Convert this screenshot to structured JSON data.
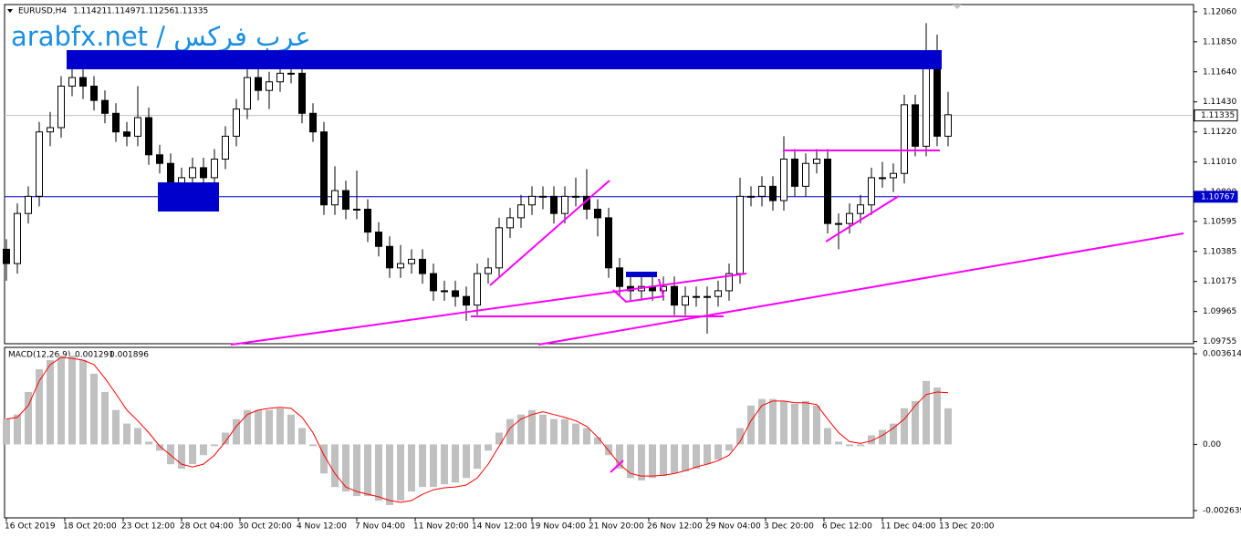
{
  "chart_data": [
    {
      "type": "candlestick",
      "title": "EURUSD,H4",
      "readouts": [
        1.11421,
        1.11497,
        1.11256,
        1.11335
      ],
      "watermark": "arabfx.net / عرب فركس",
      "x": [
        0,
        3,
        6,
        9,
        12,
        15,
        18,
        21,
        24,
        27,
        30,
        33,
        36,
        39,
        42,
        45,
        48,
        51,
        54,
        57,
        60,
        63,
        66,
        69,
        72,
        75,
        78,
        81,
        84,
        87,
        90,
        93,
        96,
        99,
        102,
        105,
        108,
        111,
        114,
        117,
        120,
        123,
        126,
        129,
        132,
        135,
        138,
        141,
        144,
        147,
        150,
        153,
        156,
        159,
        162,
        165,
        168,
        171,
        174,
        177,
        180,
        183,
        186,
        189,
        192,
        195,
        198,
        201,
        204,
        207,
        210,
        213,
        216,
        219,
        222,
        225,
        228,
        231,
        234,
        237,
        240,
        243,
        246,
        249,
        252,
        255,
        258
      ],
      "open": [
        1.104,
        1.103,
        1.1065,
        1.1077,
        1.1122,
        1.1125,
        1.1154,
        1.116,
        1.1154,
        1.1144,
        1.1135,
        1.1122,
        1.1119,
        1.1132,
        1.1106,
        1.11,
        1.1084,
        1.109,
        1.1097,
        1.109,
        1.1103,
        1.1119,
        1.1138,
        1.116,
        1.1151,
        1.1157,
        1.1163,
        1.1163,
        1.1135,
        1.1122,
        1.1071,
        1.1081,
        1.1068,
        1.1068,
        1.1052,
        1.1042,
        1.1027,
        1.103,
        1.1033,
        1.1023,
        1.1011,
        1.1011,
        1.1007,
        1.1001,
        1.1023,
        1.1027,
        1.1055,
        1.1062,
        1.1071,
        1.1077,
        1.1077,
        1.1065,
        1.1077,
        1.1077,
        1.1068,
        1.1062,
        1.1027,
        1.1014,
        1.1011,
        1.1014,
        1.1011,
        1.1014,
        1.1001,
        1.1007,
        1.1007,
        1.1007,
        1.1011,
        1.1023,
        1.1077,
        1.1077,
        1.1084,
        1.1074,
        1.1103,
        1.1084,
        1.11,
        1.1103,
        1.1058,
        1.1058,
        1.1065,
        1.1071,
        1.109,
        1.109,
        1.1093,
        1.1141,
        1.1112,
        1.1176,
        1.1119
      ],
      "high": [
        1.1047,
        1.1072,
        1.1084,
        1.1129,
        1.1136,
        1.1161,
        1.1172,
        1.1167,
        1.1161,
        1.1151,
        1.1142,
        1.1129,
        1.1154,
        1.1139,
        1.1113,
        1.1107,
        1.1097,
        1.1104,
        1.1104,
        1.111,
        1.1126,
        1.1145,
        1.1172,
        1.1167,
        1.1164,
        1.1172,
        1.1176,
        1.117,
        1.1142,
        1.1129,
        1.1098,
        1.1088,
        1.1095,
        1.1075,
        1.1059,
        1.1049,
        1.1043,
        1.104,
        1.104,
        1.103,
        1.1018,
        1.1018,
        1.1014,
        1.103,
        1.1034,
        1.1062,
        1.1069,
        1.1078,
        1.1084,
        1.1084,
        1.1084,
        1.1084,
        1.109,
        1.1096,
        1.1075,
        1.1069,
        1.1034,
        1.1024,
        1.1021,
        1.1021,
        1.1021,
        1.1021,
        1.1014,
        1.1014,
        1.1014,
        1.1018,
        1.103,
        1.109,
        1.1084,
        1.1091,
        1.1091,
        1.1119,
        1.111,
        1.1107,
        1.111,
        1.111,
        1.1065,
        1.1072,
        1.1078,
        1.1097,
        1.1101,
        1.11,
        1.1148,
        1.1148,
        1.1198,
        1.119,
        1.115
      ],
      "low": [
        1.1018,
        1.1023,
        1.1058,
        1.107,
        1.1112,
        1.1118,
        1.1147,
        1.1145,
        1.1137,
        1.1128,
        1.1115,
        1.1112,
        1.1112,
        1.1099,
        1.1093,
        1.1077,
        1.1077,
        1.1083,
        1.1083,
        1.1083,
        1.1096,
        1.1112,
        1.1131,
        1.1144,
        1.1138,
        1.115,
        1.1156,
        1.1128,
        1.1115,
        1.1064,
        1.1064,
        1.1061,
        1.1061,
        1.1045,
        1.1035,
        1.102,
        1.102,
        1.1023,
        1.1016,
        1.1004,
        1.1004,
        1.1,
        1.099,
        1.0994,
        1.1016,
        1.102,
        1.1048,
        1.1055,
        1.1064,
        1.1068,
        1.1058,
        1.1058,
        1.107,
        1.1061,
        1.1049,
        1.102,
        1.1007,
        1.1004,
        1.1004,
        1.1004,
        1.1004,
        1.0994,
        1.0994,
        1.1,
        1.0981,
        1.1,
        1.1004,
        1.1016,
        1.107,
        1.107,
        1.1067,
        1.1067,
        1.1077,
        1.1077,
        1.1093,
        1.1051,
        1.104,
        1.1051,
        1.1058,
        1.1064,
        1.1083,
        1.108,
        1.1086,
        1.1105,
        1.1105,
        1.1112,
        1.1112
      ],
      "close": [
        1.103,
        1.1065,
        1.1077,
        1.1122,
        1.1125,
        1.1154,
        1.116,
        1.1154,
        1.1144,
        1.1135,
        1.1122,
        1.1119,
        1.1132,
        1.1106,
        1.11,
        1.1084,
        1.109,
        1.1097,
        1.109,
        1.1103,
        1.1119,
        1.1138,
        1.116,
        1.1151,
        1.1157,
        1.1163,
        1.1163,
        1.1135,
        1.1122,
        1.1071,
        1.1081,
        1.1068,
        1.1068,
        1.1052,
        1.1042,
        1.1027,
        1.103,
        1.1033,
        1.1023,
        1.1011,
        1.1011,
        1.1007,
        1.1001,
        1.1023,
        1.1027,
        1.1055,
        1.1062,
        1.1071,
        1.1077,
        1.1077,
        1.1065,
        1.1077,
        1.1077,
        1.1068,
        1.1062,
        1.1027,
        1.1014,
        1.1011,
        1.1014,
        1.1011,
        1.1014,
        1.1001,
        1.1007,
        1.1007,
        1.1007,
        1.1011,
        1.1023,
        1.1077,
        1.1077,
        1.1084,
        1.1074,
        1.1103,
        1.1084,
        1.11,
        1.1103,
        1.1058,
        1.1058,
        1.1065,
        1.1071,
        1.109,
        1.109,
        1.1093,
        1.1141,
        1.1112,
        1.1176,
        1.1119,
        1.1134
      ],
      "up_color": "#ffffff",
      "down_color": "#000000",
      "xlim": [
        -0.5,
        325.25
      ],
      "ylim": [
        1.0974,
        1.1211
      ],
      "yticks": [
        {
          "value": 1.1206,
          "label": "1.12060"
        },
        {
          "value": 1.1185,
          "label": "1.11850"
        },
        {
          "value": 1.1164,
          "label": "1.11640"
        },
        {
          "value": 1.1143,
          "label": "1.11430"
        },
        {
          "value": 1.1122,
          "label": "1.11220"
        },
        {
          "value": 1.1101,
          "label": "1.11010"
        },
        {
          "value": 1.108,
          "label": "1.10800"
        },
        1.10595,
        1.10385,
        1.10175,
        1.09965,
        1.09755
      ],
      "price_lines": [
        {
          "value": 1.11335,
          "color": "#c0c0c0",
          "text_color": "#000000"
        },
        {
          "value": 1.10767,
          "color": "#0000cc",
          "text_color": "#ffffff"
        }
      ]
    },
    {
      "type": "macd",
      "title": "MACD(12,26,9)",
      "readouts": [
        0.001291,
        0.001896
      ],
      "histogram": {
        "color": "#c0c0c0",
        "values": [
          0.00101,
          0.00119,
          0.00209,
          0.003,
          0.00336,
          0.00354,
          0.00354,
          0.00336,
          0.00282,
          0.00209,
          0.00137,
          0.00083,
          0.00065,
          0.00011,
          -0.00025,
          -0.00079,
          -0.00097,
          -0.00079,
          -0.00043,
          -7e-05,
          0.00047,
          0.00101,
          0.00137,
          0.00137,
          0.00137,
          0.00144,
          0.00119,
          0.00065,
          -7e-05,
          -0.00116,
          -0.0017,
          -0.00188,
          -0.00206,
          -0.00206,
          -0.00224,
          -0.00242,
          -0.00224,
          -0.00188,
          -0.0017,
          -0.0017,
          -0.00159,
          -0.00152,
          -0.00134,
          -0.00097,
          -0.00025,
          0.00047,
          0.00101,
          0.00119,
          0.00137,
          0.00119,
          0.00101,
          0.00101,
          0.00083,
          0.00065,
          0.00029,
          -0.00043,
          -0.00097,
          -0.00134,
          -0.00144,
          -0.00134,
          -0.00126,
          -0.00116,
          -0.00108,
          -0.00097,
          -0.00079,
          -0.00061,
          -0.00025,
          0.00065,
          0.00155,
          0.00181,
          0.00181,
          0.00173,
          0.00162,
          0.00173,
          0.00155,
          0.00065,
          0.00011,
          -7e-05,
          -7e-05,
          0.00036,
          0.00058,
          0.00083,
          0.00144,
          0.00173,
          0.00253,
          0.00227,
          0.00144
        ]
      },
      "signal": {
        "color": "#ff0000",
        "values": [
          0.00101,
          0.00108,
          0.00155,
          0.00253,
          0.00318,
          0.00347,
          0.00343,
          0.00336,
          0.00318,
          0.00264,
          0.00202,
          0.00137,
          0.00094,
          0.00047,
          -7e-05,
          -0.00043,
          -0.00079,
          -0.0009,
          -0.00079,
          -0.00043,
          0.00011,
          0.00072,
          0.00119,
          0.00137,
          0.00144,
          0.00148,
          0.00144,
          0.00108,
          0.00047,
          -0.00043,
          -0.00116,
          -0.0017,
          -0.00188,
          -0.00199,
          -0.00209,
          -0.00224,
          -0.00231,
          -0.00224,
          -0.00199,
          -0.00181,
          -0.00173,
          -0.0017,
          -0.00162,
          -0.00134,
          -0.00079,
          -7e-05,
          0.00065,
          0.00101,
          0.00119,
          0.0013,
          0.00119,
          0.00108,
          0.00094,
          0.00072,
          0.00029,
          -0.00025,
          -0.00079,
          -0.00116,
          -0.00126,
          -0.00126,
          -0.00123,
          -0.00116,
          -0.00105,
          -0.0009,
          -0.00079,
          -0.00065,
          -0.00043,
          0.00011,
          0.00094,
          0.00155,
          0.00173,
          0.00173,
          0.00166,
          0.00166,
          0.00159,
          0.00101,
          0.00047,
          0.00011,
          4e-05,
          0.00014,
          0.00036,
          0.00065,
          0.00101,
          0.00155,
          0.00199,
          0.00209,
          0.00206
        ]
      },
      "ylim": [
        -0.00293,
        0.00387
      ],
      "yticks": [
        0.003614,
        {
          "value": 0,
          "label": "0.00"
        },
        -0.002639
      ],
      "xticks": [
        {
          "value": 0,
          "label": "16 Oct 2019"
        },
        {
          "value": 16,
          "label": "18 Oct 20:00"
        },
        {
          "value": 32,
          "label": "23 Oct 12:00"
        },
        {
          "value": 48,
          "label": "28 Oct 04:00"
        },
        {
          "value": 64,
          "label": "30 Oct 20:00"
        },
        {
          "value": 80,
          "label": "4 Nov 12:00"
        },
        {
          "value": 96,
          "label": "7 Nov 04:00"
        },
        {
          "value": 112,
          "label": "11 Nov 20:00"
        },
        {
          "value": 128,
          "label": "14 Nov 12:00"
        },
        {
          "value": 144,
          "label": "19 Nov 04:00"
        },
        {
          "value": 160,
          "label": "21 Nov 20:00"
        },
        {
          "value": 176,
          "label": "26 Nov 12:00"
        },
        {
          "value": 192,
          "label": "29 Nov 04:00"
        },
        {
          "value": 208,
          "label": "3 Dec 20:00"
        },
        {
          "value": 224,
          "label": "6 Dec 12:00"
        },
        {
          "value": 240,
          "label": "11 Dec 04:00"
        },
        {
          "value": 256,
          "label": "13 Dec 20:00"
        }
      ]
    }
  ]
}
